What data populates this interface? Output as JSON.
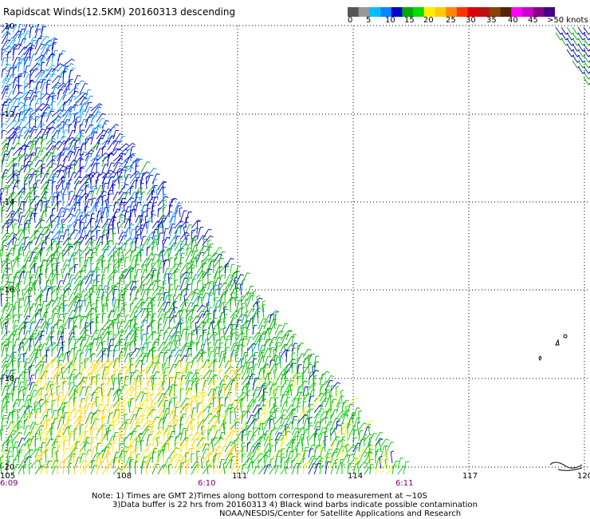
{
  "title": "Rapidscat Winds(12.5KM) 20160313 descending",
  "colorbar": {
    "segments": [
      "#555555",
      "#999999",
      "#00bfff",
      "#0088ff",
      "#0000cc",
      "#00aa00",
      "#00dd00",
      "#ffee00",
      "#ffcc00",
      "#ff8800",
      "#ff3300",
      "#dd0000",
      "#bb1111",
      "#884400",
      "#552200",
      "#ff00ff",
      "#cc00cc",
      "#880088",
      "#440088"
    ],
    "labels": [
      "0",
      "5",
      "10",
      "15",
      "20",
      "25",
      "30",
      "35",
      "40",
      "45",
      ">50 knots"
    ]
  },
  "map": {
    "lat_labels": [
      "-10",
      "-12",
      "-14",
      "-16",
      "-18",
      "-20"
    ],
    "lon_labels": [
      "105",
      "108",
      "111",
      "114",
      "117",
      "120"
    ],
    "time_labels": [
      "6:09",
      "6:10",
      "6:11"
    ]
  },
  "notes": [
    "Note: 1) Times are GMT 2)Times along bottom correspond to measurement at ~10S",
    "3)Data buffer is 22 hrs from 20160313 4) Black wind barbs indicate possible contamination",
    "NOAA/NESDIS/Center for Satellite Applications and Research"
  ]
}
